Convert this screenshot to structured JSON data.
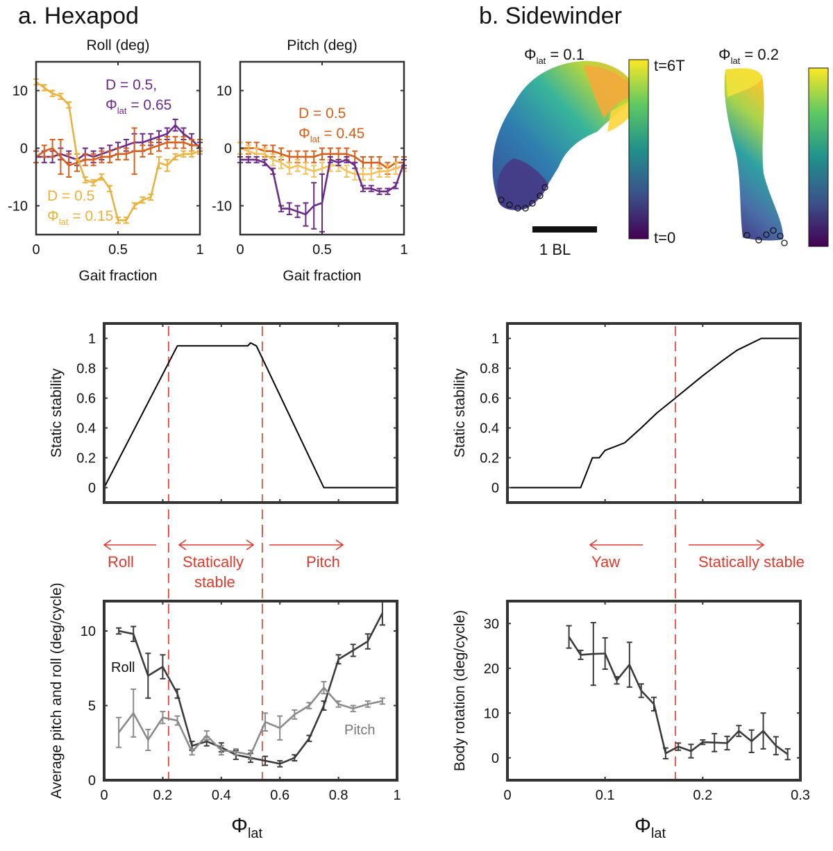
{
  "panels": {
    "a_title": "a. Hexapod",
    "b_title": "b. Sidewinder"
  },
  "colors": {
    "purple": "#6b2a8a",
    "orange": "#d95e1a",
    "gold": "#eab13c",
    "red_dash": "#dd3a2c",
    "dark": "#3a3a3a",
    "gray": "#8a8a8a",
    "viridis": [
      "#440154",
      "#3b528b",
      "#21918c",
      "#5ec962",
      "#fde725"
    ]
  },
  "snapshots": {
    "left_label": "Φ",
    "left_sub": "lat",
    "left_value": " = 0.1",
    "right_label": "Φ",
    "right_sub": "lat",
    "right_value": " = 0.2",
    "colorbar_top": "t=6T",
    "colorbar_bottom": "t=0",
    "scale_bar": "1 BL"
  },
  "annotations": {
    "roll": "Roll",
    "statically": "Statically",
    "stable": "stable",
    "pitch": "Pitch",
    "yaw": "Yaw",
    "statically_stable": "Statically stable",
    "line_roll": "Roll",
    "line_pitch": "Pitch"
  },
  "chart_data": [
    {
      "id": "roll",
      "type": "line",
      "title": "Roll (deg)",
      "xlabel": "Gait fraction",
      "ylabel": "",
      "xlim": [
        0,
        1
      ],
      "ylim": [
        -15,
        15
      ],
      "xticks": [
        0,
        0.5,
        1
      ],
      "xtick_labels": [
        "0",
        "0.5",
        "1"
      ],
      "yticks": [
        -10,
        0,
        10
      ],
      "ytick_labels": [
        "-10",
        "0",
        "10"
      ],
      "legend": [
        {
          "line1": "D = 0.5,",
          "phi": "Φ",
          "sub": "lat",
          "rest": " = 0.65",
          "color": "#6b2a8a"
        },
        {
          "line1": "D = 0.5",
          "phi": "Φ",
          "sub": "lat",
          "rest": " = 0.15",
          "color": "#eab13c"
        }
      ],
      "series": [
        {
          "name": "D=0.5, Φlat=0.65",
          "color": "#6b2a8a",
          "x": [
            0,
            0.05,
            0.1,
            0.15,
            0.2,
            0.25,
            0.3,
            0.35,
            0.4,
            0.45,
            0.5,
            0.55,
            0.6,
            0.65,
            0.7,
            0.75,
            0.8,
            0.85,
            0.9,
            0.95,
            1.0
          ],
          "y": [
            -1.5,
            -1.5,
            -1.5,
            -1.0,
            -1.5,
            -2.0,
            -1.0,
            -1.5,
            -1.0,
            -0.5,
            0,
            0.5,
            1.0,
            1.0,
            1.5,
            2.0,
            2.5,
            4.0,
            2.5,
            1.5,
            0
          ],
          "err": [
            1,
            1,
            1,
            1,
            1,
            1,
            1,
            1,
            1,
            1,
            1,
            1,
            1.5,
            1.5,
            1,
            1,
            1,
            1,
            1,
            1,
            1
          ]
        },
        {
          "name": "D=0.5, Φlat=0.45 (roll)",
          "color": "#d95e1a",
          "x": [
            0,
            0.05,
            0.1,
            0.15,
            0.2,
            0.25,
            0.3,
            0.35,
            0.4,
            0.45,
            0.5,
            0.55,
            0.6,
            0.65,
            0.7,
            0.75,
            0.8,
            0.85,
            0.9,
            0.95,
            1.0
          ],
          "y": [
            -1.5,
            -0.5,
            0,
            -1.5,
            -3.0,
            -2.5,
            -2.0,
            -2.0,
            -1.5,
            -1.5,
            -1.0,
            -1.0,
            -0.5,
            -0.5,
            0,
            0.5,
            1.0,
            1.0,
            1.0,
            0.5,
            0.5
          ],
          "err": [
            1,
            1,
            1.5,
            3,
            2,
            1.5,
            1,
            1,
            1,
            1,
            1,
            1,
            4,
            1,
            1,
            1,
            1,
            1,
            1,
            1,
            1
          ]
        },
        {
          "name": "D=0.5, Φlat=0.15",
          "color": "#eab13c",
          "x": [
            0,
            0.05,
            0.1,
            0.15,
            0.2,
            0.25,
            0.3,
            0.35,
            0.4,
            0.45,
            0.5,
            0.55,
            0.6,
            0.65,
            0.7,
            0.75,
            0.8,
            0.85,
            0.9,
            0.95,
            1.0
          ],
          "y": [
            11.5,
            10.5,
            9.5,
            9.0,
            7.5,
            -1.5,
            -5.5,
            -6.0,
            -5.0,
            -7.0,
            -12.5,
            -12.5,
            -10.0,
            -9.0,
            -8.5,
            -2.5,
            -3.0,
            -1.5,
            -1.0,
            -1.0,
            -0.5
          ],
          "err": [
            0.5,
            0.5,
            0.5,
            0.5,
            0.5,
            0.5,
            0.5,
            0.5,
            0.5,
            0.5,
            0.5,
            0.5,
            0.5,
            0.5,
            0.5,
            1,
            1,
            0.5,
            0.5,
            0.5,
            0.5
          ]
        }
      ]
    },
    {
      "id": "pitch",
      "type": "line",
      "title": "Pitch (deg)",
      "xlabel": "Gait fraction",
      "ylabel": "",
      "xlim": [
        0,
        1
      ],
      "ylim": [
        -15,
        15
      ],
      "xticks": [
        0,
        0.5,
        1
      ],
      "xtick_labels": [
        "0",
        "0.5",
        "1"
      ],
      "yticks": [
        -10,
        0,
        10
      ],
      "ytick_labels": [
        "-10",
        "0",
        "10"
      ],
      "legend": [
        {
          "line1": "D = 0.5",
          "phi": "Φ",
          "sub": "lat",
          "rest": " = 0.45",
          "color": "#d95e1a"
        }
      ],
      "series": [
        {
          "name": "D=0.5, Φlat=0.45",
          "color": "#d95e1a",
          "x": [
            0,
            0.05,
            0.1,
            0.15,
            0.2,
            0.25,
            0.3,
            0.35,
            0.4,
            0.45,
            0.5,
            0.55,
            0.6,
            0.65,
            0.7,
            0.75,
            0.8,
            0.85,
            0.9,
            0.95,
            1.0
          ],
          "y": [
            0,
            0,
            0,
            -0.5,
            -0.5,
            -1.0,
            -1.5,
            -1.5,
            -1.5,
            -1.5,
            -1.0,
            -1.0,
            -1.0,
            -1.0,
            -1.5,
            -2.5,
            -2.5,
            -2.5,
            -3.5,
            -2.5,
            -2.5
          ],
          "err": [
            1,
            1,
            1,
            1,
            1,
            1,
            1,
            1,
            1,
            1,
            1,
            1,
            1,
            1,
            1,
            1,
            1,
            1,
            1,
            1,
            1
          ]
        },
        {
          "name": "pitch light",
          "color": "#f2c15a",
          "x": [
            0,
            0.05,
            0.1,
            0.15,
            0.2,
            0.25,
            0.3,
            0.35,
            0.4,
            0.45,
            0.5,
            0.55,
            0.6,
            0.65,
            0.7,
            0.75,
            0.8,
            0.85,
            0.9,
            0.95,
            1.0
          ],
          "y": [
            0,
            -0.5,
            -1.0,
            -1.0,
            -2.0,
            -2.5,
            -3.5,
            -3.0,
            -3.5,
            -4.0,
            -3.5,
            -3.0,
            -3.0,
            -4.0,
            -4.5,
            -4.5,
            -4.5,
            -4.0,
            -4.0,
            -3.5,
            -3.0
          ],
          "err": [
            1,
            1,
            1,
            1,
            1,
            1,
            1,
            1,
            1,
            1,
            1,
            1,
            1,
            1,
            1,
            1,
            1,
            1,
            1,
            1,
            1
          ]
        },
        {
          "name": "pitch purple",
          "color": "#6b2a8a",
          "x": [
            0,
            0.05,
            0.1,
            0.15,
            0.2,
            0.25,
            0.3,
            0.35,
            0.4,
            0.45,
            0.5,
            0.55,
            0.6,
            0.65,
            0.7,
            0.75,
            0.8,
            0.85,
            0.9,
            0.95,
            1.0
          ],
          "y": [
            -2.0,
            -2.0,
            -2.0,
            -2.5,
            -4.0,
            -10.5,
            -10.5,
            -11.0,
            -11.5,
            -10.0,
            -9.5,
            -2.0,
            -2.5,
            -2.0,
            -3.0,
            -7.0,
            -7.0,
            -7.5,
            -7.5,
            -6.5,
            -2.5
          ],
          "err": [
            0.5,
            0.5,
            0.5,
            0.5,
            0.5,
            0.5,
            1,
            1,
            2,
            4,
            5,
            0.5,
            0.5,
            0.5,
            0.5,
            0.5,
            0.5,
            0.5,
            0.5,
            0.5,
            0.5
          ]
        }
      ]
    },
    {
      "id": "hex_stability",
      "type": "line",
      "title": "",
      "xlabel": "",
      "ylabel": "Static stability",
      "xlim": [
        0,
        1
      ],
      "ylim": [
        -0.1,
        1.1
      ],
      "xticks": [
        0,
        0.2,
        0.4,
        0.6,
        0.8,
        1
      ],
      "xtick_labels": [],
      "yticks": [
        0,
        0.2,
        0.4,
        0.6,
        0.8,
        1
      ],
      "ytick_labels": [
        "0",
        "0.2",
        "0.4",
        "0.6",
        "0.8",
        "1"
      ],
      "vlines": [
        0.22,
        0.54
      ],
      "series": [
        {
          "name": "static stability",
          "color": "#000000",
          "x": [
            0,
            0.25,
            0.49,
            0.5,
            0.52,
            0.75,
            1.0
          ],
          "y": [
            0,
            0.95,
            0.95,
            0.97,
            0.95,
            0,
            0
          ]
        }
      ]
    },
    {
      "id": "side_stability",
      "type": "line",
      "title": "",
      "xlabel": "",
      "ylabel": "Static stability",
      "xlim": [
        0,
        0.3
      ],
      "ylim": [
        -0.1,
        1.1
      ],
      "xticks": [
        0,
        0.1,
        0.2,
        0.3
      ],
      "xtick_labels": [],
      "yticks": [
        0,
        0.2,
        0.4,
        0.6,
        0.8,
        1
      ],
      "ytick_labels": [
        "0",
        "0.2",
        "0.4",
        "0.6",
        "0.8",
        "1"
      ],
      "vlines": [
        0.172
      ],
      "series": [
        {
          "name": "static stability",
          "color": "#000000",
          "x": [
            0,
            0.075,
            0.087,
            0.094,
            0.1,
            0.12,
            0.137,
            0.153,
            0.172,
            0.2,
            0.21,
            0.22,
            0.235,
            0.26,
            0.3
          ],
          "y": [
            0,
            0,
            0.2,
            0.2,
            0.25,
            0.3,
            0.4,
            0.5,
            0.6,
            0.75,
            0.8,
            0.85,
            0.92,
            1.0,
            1.0
          ]
        }
      ]
    },
    {
      "id": "hex_rotation",
      "type": "line",
      "title": "",
      "xlabel": "Φ",
      "xlabel_sub": "lat",
      "ylabel": "Average pitch and roll (deg/cycle)",
      "xlim": [
        0,
        1
      ],
      "ylim": [
        0,
        12
      ],
      "xticks": [
        0,
        0.2,
        0.4,
        0.6,
        0.8,
        1
      ],
      "xtick_labels": [
        "0",
        "0.2",
        "0.4",
        "0.6",
        "0.8",
        "1"
      ],
      "yticks": [
        0,
        5,
        10
      ],
      "ytick_labels": [
        "0",
        "5",
        "10"
      ],
      "vlines": [
        0.22,
        0.54
      ],
      "series": [
        {
          "name": "Roll",
          "color": "#3a3a3a",
          "x": [
            0.05,
            0.1,
            0.15,
            0.2,
            0.25,
            0.3,
            0.35,
            0.4,
            0.45,
            0.5,
            0.55,
            0.6,
            0.65,
            0.7,
            0.75,
            0.8,
            0.85,
            0.9,
            0.95
          ],
          "y": [
            10.0,
            9.8,
            7.0,
            7.6,
            5.8,
            2.3,
            2.6,
            2.2,
            1.7,
            1.5,
            1.3,
            1.1,
            1.5,
            2.8,
            5.0,
            8.1,
            8.7,
            9.3,
            11.2
          ],
          "err": [
            0.2,
            0.5,
            1.5,
            0.8,
            0.3,
            0.3,
            0.3,
            0.3,
            0.3,
            0.3,
            0.3,
            0.2,
            0.2,
            0.2,
            0.3,
            0.3,
            0.4,
            0.5,
            0.8
          ]
        },
        {
          "name": "Pitch",
          "color": "#8a8a8a",
          "x": [
            0.05,
            0.1,
            0.15,
            0.2,
            0.25,
            0.3,
            0.35,
            0.4,
            0.45,
            0.5,
            0.55,
            0.6,
            0.65,
            0.7,
            0.75,
            0.8,
            0.85,
            0.9,
            0.95
          ],
          "y": [
            3.2,
            4.5,
            2.7,
            4.2,
            4.0,
            1.9,
            3.0,
            2.0,
            1.9,
            1.7,
            3.9,
            3.5,
            4.4,
            5.0,
            6.2,
            5.1,
            4.8,
            5.1,
            5.3
          ],
          "err": [
            1.0,
            1.6,
            0.7,
            0.4,
            0.3,
            0.2,
            0.3,
            0.3,
            0.2,
            0.3,
            0.6,
            0.8,
            0.3,
            0.2,
            0.4,
            0.2,
            0.2,
            0.2,
            0.2
          ]
        }
      ]
    },
    {
      "id": "side_rotation",
      "type": "line",
      "title": "",
      "xlabel": "Φ",
      "xlabel_sub": "lat",
      "ylabel": "Body rotation (deg/cycle)",
      "xlim": [
        0,
        0.3
      ],
      "ylim": [
        -5,
        35
      ],
      "xticks": [
        0,
        0.1,
        0.2,
        0.3
      ],
      "xtick_labels": [
        "0",
        "0.1",
        "0.2",
        "0.3"
      ],
      "yticks": [
        0,
        10,
        20,
        30
      ],
      "ytick_labels": [
        "0",
        "10",
        "20",
        "30"
      ],
      "vlines": [
        0.172
      ],
      "series": [
        {
          "name": "rotation",
          "color": "#3a3a3a",
          "x": [
            0.063,
            0.075,
            0.088,
            0.1,
            0.112,
            0.125,
            0.137,
            0.15,
            0.162,
            0.175,
            0.188,
            0.2,
            0.212,
            0.225,
            0.237,
            0.25,
            0.262,
            0.275,
            0.287
          ],
          "y": [
            27.0,
            23.0,
            23.2,
            23.3,
            17.3,
            20.8,
            15.0,
            12.0,
            1.0,
            2.5,
            1.5,
            3.5,
            3.4,
            3.3,
            6.0,
            3.7,
            6.0,
            2.7,
            0.8
          ],
          "err": [
            2.5,
            1.0,
            7.0,
            3.5,
            0.8,
            5.0,
            1.5,
            1.5,
            1.2,
            0.8,
            1.5,
            0.5,
            2.0,
            1.5,
            1.2,
            2.5,
            4.0,
            2.0,
            1.2
          ]
        }
      ]
    }
  ]
}
